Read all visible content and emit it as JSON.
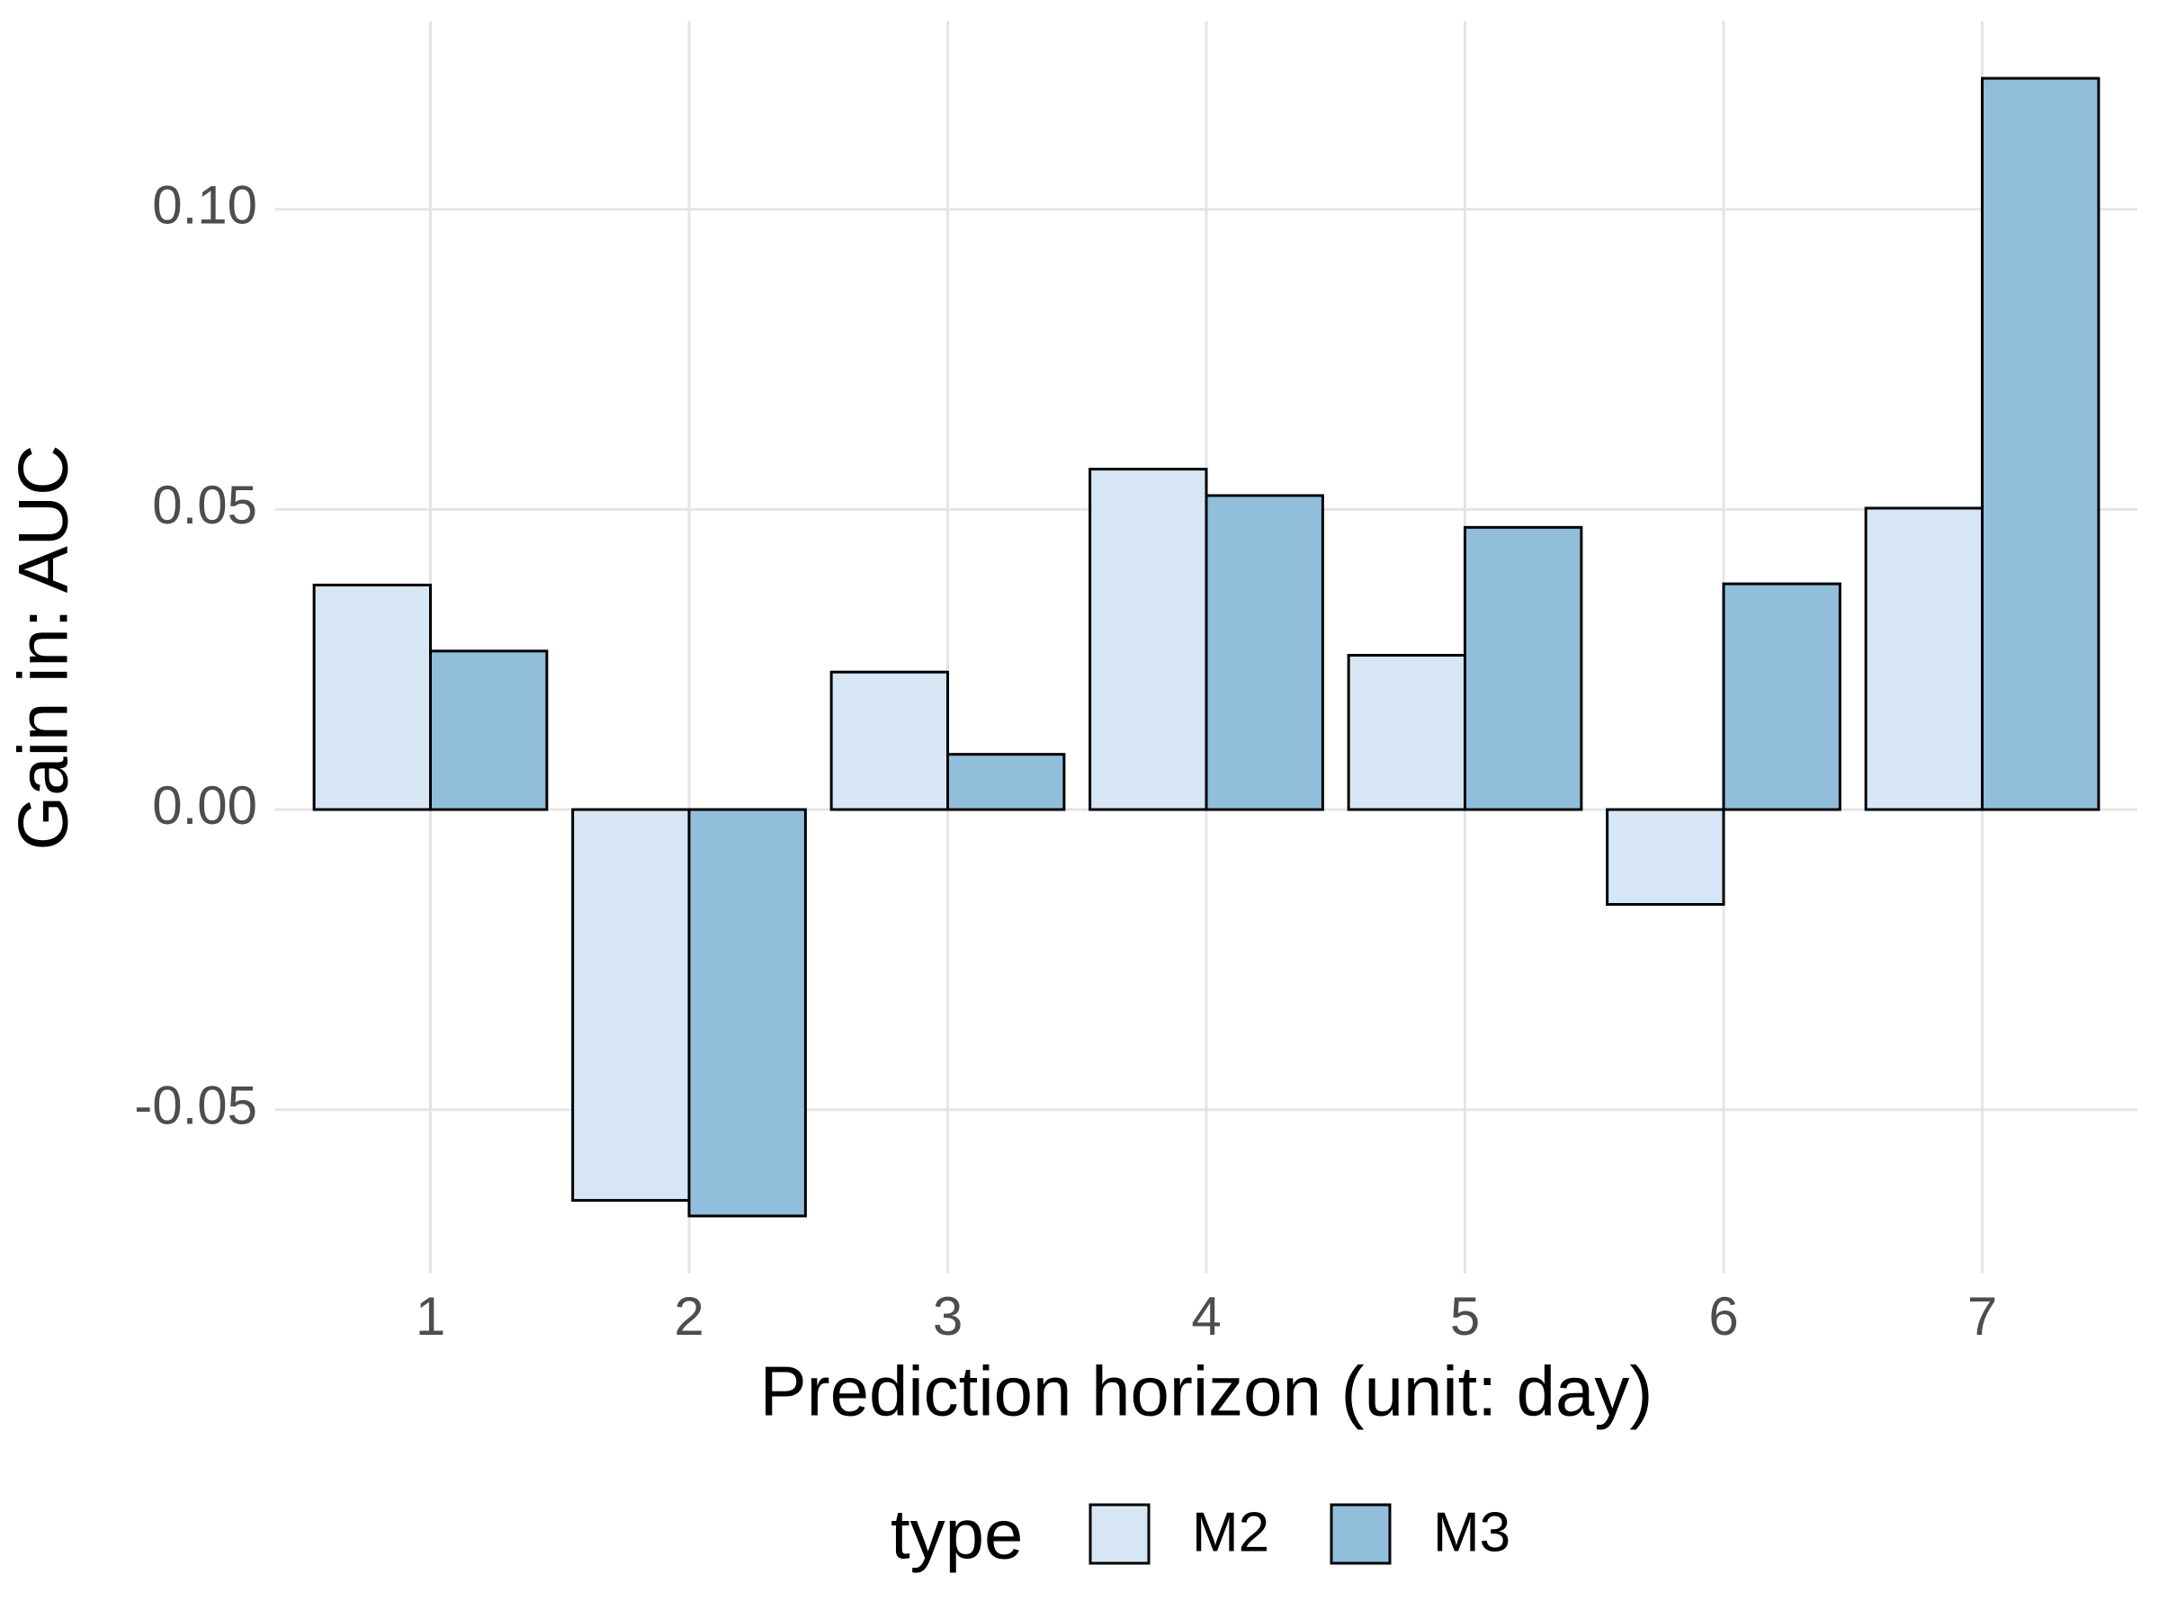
{
  "chart_data": {
    "type": "bar",
    "x_label": "Prediction horizon (unit: day)",
    "y_label": "Gain in: AUC",
    "legend_title": "type",
    "legend_position": "bottom",
    "categories": [
      "1",
      "2",
      "3",
      "4",
      "5",
      "6",
      "7"
    ],
    "series": [
      {
        "name": "M2",
        "color": "#d6e6f4",
        "values": [
          0.0374,
          -0.0651,
          0.0229,
          0.0567,
          0.0257,
          -0.0158,
          0.0502
        ]
      },
      {
        "name": "M3",
        "color": "#91bfdb",
        "values": [
          0.0264,
          -0.0677,
          0.0092,
          0.0523,
          0.047,
          0.0376,
          0.1218
        ]
      }
    ],
    "ylim": [
      -0.0773,
      0.1314
    ],
    "yticks": [
      {
        "value": -0.05,
        "label": "-0.05"
      },
      {
        "value": 0,
        "label": "0.00"
      },
      {
        "value": 0.05,
        "label": "0.05"
      },
      {
        "value": 0.1,
        "label": "0.10"
      }
    ],
    "grid": true
  }
}
